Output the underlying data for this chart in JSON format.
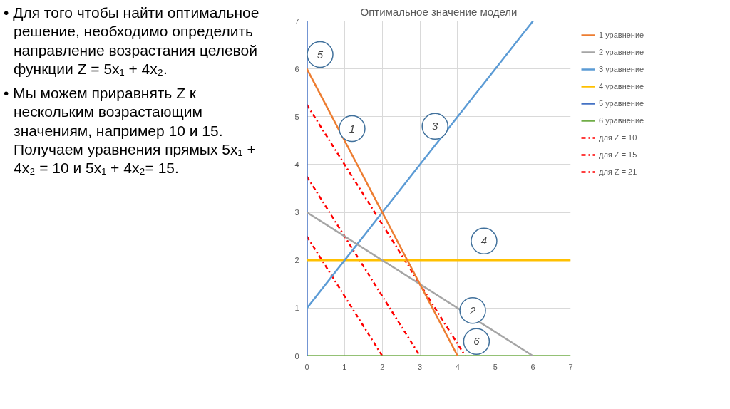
{
  "chart_data": {
    "type": "line",
    "title": "Оптимальное значение модели",
    "xlim": [
      0,
      7
    ],
    "ylim": [
      0,
      7
    ],
    "xticks": [
      0,
      1,
      2,
      3,
      4,
      5,
      6,
      7
    ],
    "yticks": [
      0,
      1,
      2,
      3,
      4,
      5,
      6,
      7
    ],
    "grid": true,
    "legend": "right",
    "line_style": "solid",
    "series": [
      {
        "name": "1 уравнение",
        "color": "#ed7d31",
        "x": [
          0,
          4
        ],
        "values": [
          6,
          0
        ]
      },
      {
        "name": "2 уравнение",
        "color": "#a5a5a5",
        "x": [
          0,
          6
        ],
        "values": [
          3,
          0
        ]
      },
      {
        "name": "3 уравнение",
        "color": "#5b9bd5",
        "x": [
          0,
          6
        ],
        "values": [
          1,
          7
        ]
      },
      {
        "name": "4 уравнение",
        "color": "#ffc000",
        "x": [
          0,
          7
        ],
        "values": [
          2,
          2
        ]
      },
      {
        "name": "5 уравнение",
        "color": "#4472c4",
        "x": [
          0,
          0
        ],
        "values": [
          0,
          7
        ]
      },
      {
        "name": "6 уравнение",
        "color": "#70ad47",
        "x": [
          0,
          7
        ],
        "values": [
          0,
          0
        ]
      },
      {
        "name": "для Z = 10",
        "color": "#ff0000",
        "x": [
          0,
          2
        ],
        "values": [
          2.5,
          0
        ],
        "line_style": "dashed"
      },
      {
        "name": "для Z = 15",
        "color": "#ff0000",
        "x": [
          0,
          3
        ],
        "values": [
          3.75,
          0
        ],
        "line_style": "dashed"
      },
      {
        "name": "для Z = 21",
        "color": "#ff0000",
        "x": [
          0,
          4.2
        ],
        "values": [
          5.25,
          0
        ],
        "line_style": "dashed"
      }
    ],
    "annotations": [
      "• Для того чтобы найти оптимальное решение, необходимо определить направление возрастания целевой функции Z = 5x₁ + 4x₂.",
      "• Мы можем приравнять Z к нескольким возрастающим значениям, например 10 и 15. Получаем уравнения прямых 5x₁ + 4x₂ = 10 и 5x₁ + 4x₂= 15.",
      {
        "text": "1",
        "x": 1.2,
        "y": 4.75
      },
      {
        "text": "2",
        "x": 4.4,
        "y": 0.95
      },
      {
        "text": "3",
        "x": 3.4,
        "y": 4.8
      },
      {
        "text": "4",
        "x": 4.7,
        "y": 2.4
      },
      {
        "text": "5",
        "x": 0.35,
        "y": 6.3
      },
      {
        "text": "6",
        "x": 4.5,
        "y": 0.3
      }
    ]
  }
}
